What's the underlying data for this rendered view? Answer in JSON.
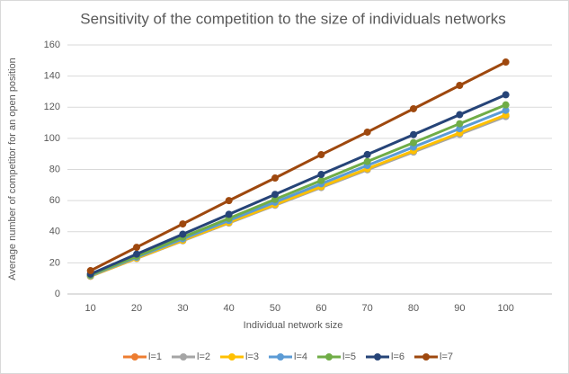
{
  "chart_data": {
    "type": "line",
    "title": "Sensitivity of the competition to the size of individuals networks",
    "x_label": "Individual network size",
    "y_label": "Average number of competitor for an open position",
    "x": [
      10,
      20,
      30,
      40,
      50,
      60,
      70,
      80,
      90,
      100
    ],
    "xlim": [
      5,
      110
    ],
    "xticks": [
      10,
      20,
      30,
      40,
      50,
      60,
      70,
      80,
      90,
      100
    ],
    "ylim": [
      0,
      160
    ],
    "yticks": [
      0,
      20,
      40,
      60,
      80,
      100,
      120,
      140,
      160
    ],
    "grid": true,
    "legend": "bottom",
    "series": [
      {
        "name": "l=1",
        "color": "#ed7d31",
        "values": [
          11.4,
          22.9,
          34.3,
          45.7,
          57.2,
          68.6,
          80,
          91.4,
          102.9,
          114.3
        ]
      },
      {
        "name": "l=2",
        "color": "#a5a5a5",
        "values": [
          11.4,
          22.8,
          34.2,
          45.6,
          57,
          68.4,
          79.8,
          91.2,
          102.6,
          114
        ]
      },
      {
        "name": "l=3",
        "color": "#ffc000",
        "values": [
          11.5,
          23,
          34.5,
          46,
          57.5,
          69,
          80.5,
          92,
          103.5,
          115
        ]
      },
      {
        "name": "l=4",
        "color": "#5b9bd5",
        "values": [
          11.8,
          23.6,
          35.4,
          47.2,
          59,
          70.8,
          82.6,
          94.4,
          106.2,
          118
        ]
      },
      {
        "name": "l=5",
        "color": "#70ad47",
        "values": [
          12.2,
          24.3,
          36.5,
          48.6,
          60.8,
          72.9,
          85.1,
          97.2,
          109.4,
          121.5
        ]
      },
      {
        "name": "l=6",
        "color": "#264478",
        "values": [
          12.8,
          25.6,
          38.4,
          51.2,
          64,
          76.8,
          89.6,
          102.4,
          115.2,
          128
        ]
      },
      {
        "name": "l=7",
        "color": "#9e480e",
        "values": [
          15,
          30,
          45,
          60,
          74.5,
          89.5,
          104,
          119,
          134,
          149
        ]
      }
    ]
  }
}
